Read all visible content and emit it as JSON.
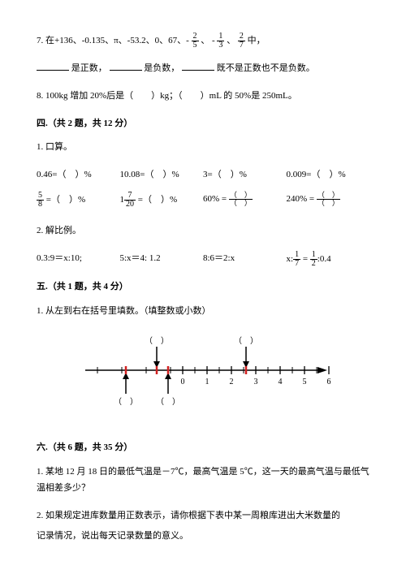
{
  "q7": {
    "prefix": "7. 在+136、-0.135、π、-53.2、0、67、-",
    "f1_num": "2",
    "f1_den": "5",
    "sep1": "、 -",
    "f2_num": "1",
    "f2_den": "3",
    "sep2": "、",
    "f3_num": "2",
    "f3_den": "7",
    "suffix": "中，",
    "line2a": "是正数，",
    "line2b": "是负数，",
    "line2c": "既不是正数也不是负数。"
  },
  "q8": "8. 100kg 增加 20%后是（　　）kg；（　　）mL 的 50%是 250mL。",
  "sec4": {
    "head": "四.（共 2 题，共 12 分）",
    "q1": "1. 口算。",
    "grid": [
      {
        "t": "0.46=（　）%"
      },
      {
        "t": "10.08=（　）%"
      },
      {
        "t": "3=（　）%"
      },
      {
        "t": "0.009=（　）%"
      }
    ],
    "r2": {
      "c1_num": "5",
      "c1_den": "8",
      "c1_txt": " =（　）%",
      "c2_pre": "1",
      "c2_num": "7",
      "c2_den": "20",
      "c2_txt": " =（　）%",
      "c3_pre": "60% =",
      "c4_pre": "240% ="
    },
    "q2": "2. 解比例。",
    "props": [
      "0.3:9＝x:10;",
      "5:x＝4: 1.2",
      "8:6＝2:x"
    ],
    "p4_pre": "x:",
    "p4_f1n": "1",
    "p4_f1d": "7",
    "p4_mid": " = ",
    "p4_f2n": "1",
    "p4_f2d": "2",
    "p4_post": ":0.4"
  },
  "sec5": {
    "head": "五.（共 1 题，共 4 分）",
    "q1": "1. 从左到右在括号里填数。（填整数或小数）"
  },
  "numline": {
    "ticks": [
      "0",
      "1",
      "2",
      "3",
      "4",
      "5",
      "6"
    ],
    "top_paren": "（　）",
    "color_tick": "#d02020",
    "color_line": "#000000"
  },
  "sec6": {
    "head": "六.（共 6 题，共 35 分）",
    "q1": "1. 某地 12 月 18 日的最低气温是－7℃，最高气温是 5℃，这一天的最高气温与最低气温相差多少？",
    "q2": "2. 如果规定进库数量用正数表示，请你根据下表中某一周粮库进出大米数量的",
    "q2b": "记录情况，说出每天记录数量的意义。"
  }
}
